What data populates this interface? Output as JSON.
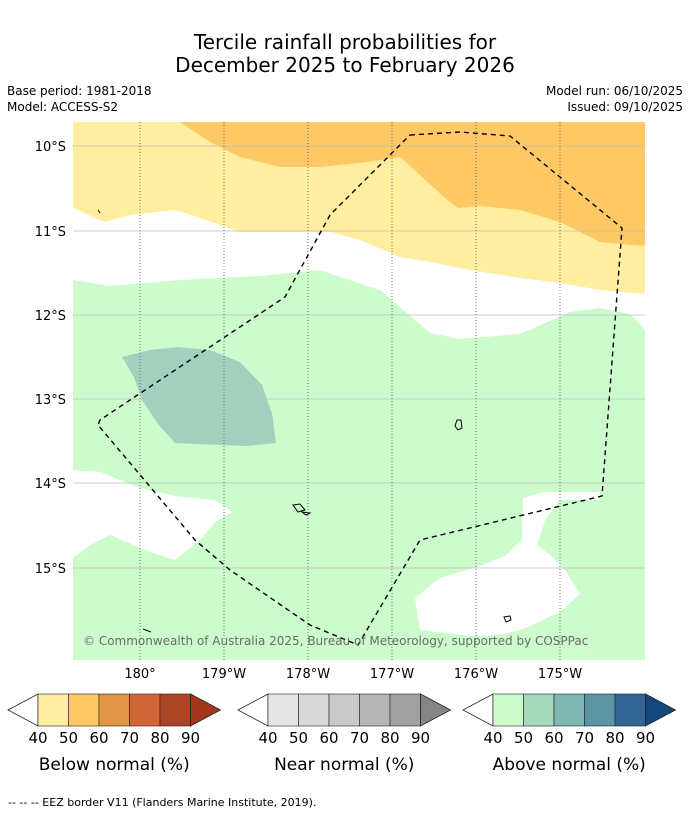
{
  "title": {
    "line1": "Tercile rainfall probabilities for",
    "line2": "December 2025 to February 2026"
  },
  "meta": {
    "base_period": "Base period: 1981-2018",
    "model": "Model: ACCESS-S2",
    "model_run": "Model run: 06/10/2025",
    "issued": "Issued: 09/10/2025"
  },
  "map": {
    "lat_labels": [
      "10°S",
      "11°S",
      "12°S",
      "13°S",
      "14°S",
      "15°S"
    ],
    "lon_labels": [
      "180°",
      "179°W",
      "178°W",
      "177°W",
      "176°W",
      "175°W"
    ],
    "copyright": "© Commonwealth of Australia 2025, Bureau of Meteorology, supported by COSPPac",
    "colors": {
      "below_40": "#ffeda0",
      "below_50": "#fec965",
      "above_40": "#ccfccc",
      "above_50": "#a1d1be",
      "background": "#ffffff"
    }
  },
  "legends": [
    {
      "id": "below",
      "label": "Below normal (%)",
      "ticks": [
        "40",
        "50",
        "60",
        "70",
        "80",
        "90"
      ],
      "colors": [
        "#ffeda0",
        "#fec965",
        "#e19547",
        "#d16535",
        "#aa4626",
        "#a3361a"
      ]
    },
    {
      "id": "near",
      "label": "Near normal (%)",
      "ticks": [
        "40",
        "50",
        "60",
        "70",
        "80",
        "90"
      ],
      "colors": [
        "#e6e6e6",
        "#d9d9d9",
        "#c9c9c9",
        "#b5b5b5",
        "#a1a1a1",
        "#858585"
      ]
    },
    {
      "id": "above",
      "label": "Above normal (%)",
      "ticks": [
        "40",
        "50",
        "60",
        "70",
        "80",
        "90"
      ],
      "colors": [
        "#ccfccc",
        "#a6d9bb",
        "#7fb8b2",
        "#5b95a2",
        "#326696",
        "#13477d"
      ]
    }
  ],
  "footer": "--  --  -- EEZ border V11 (Flanders Marine Institute, 2019)."
}
